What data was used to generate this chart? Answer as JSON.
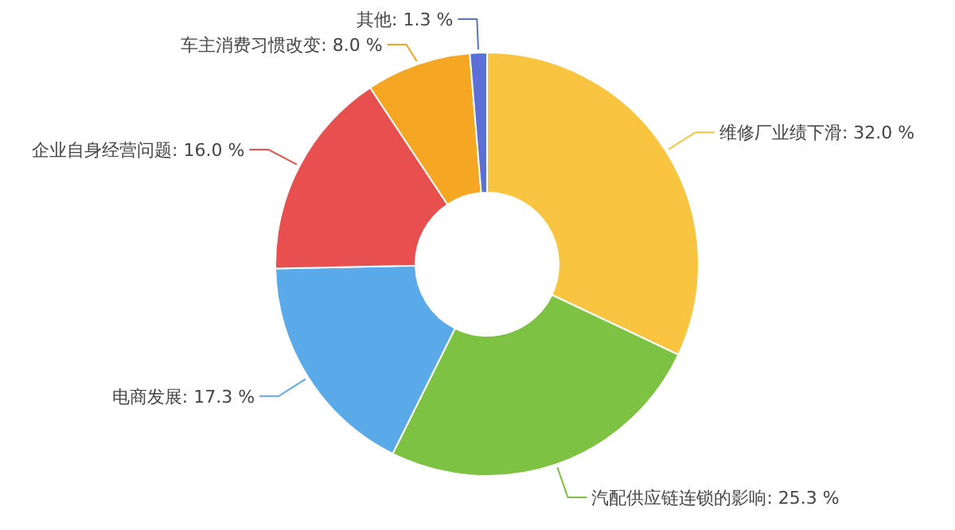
{
  "chart_data": {
    "type": "donut",
    "categories": [
      "维修厂业绩下滑",
      "汽配供应链连锁的影响",
      "电商发展",
      "企业自身经营问题",
      "车主消费习惯改变",
      "其他"
    ],
    "values": [
      32.0,
      25.3,
      17.3,
      16.0,
      8.0,
      1.3
    ],
    "value_labels": [
      "32.0 %",
      "25.3 %",
      "17.3 %",
      "16.0 %",
      "8.0 %",
      "1.3 %"
    ],
    "colors": [
      "#f9c440",
      "#7dc242",
      "#5aa9e8",
      "#e8504f",
      "#f5a623",
      "#5b6fd6"
    ]
  }
}
